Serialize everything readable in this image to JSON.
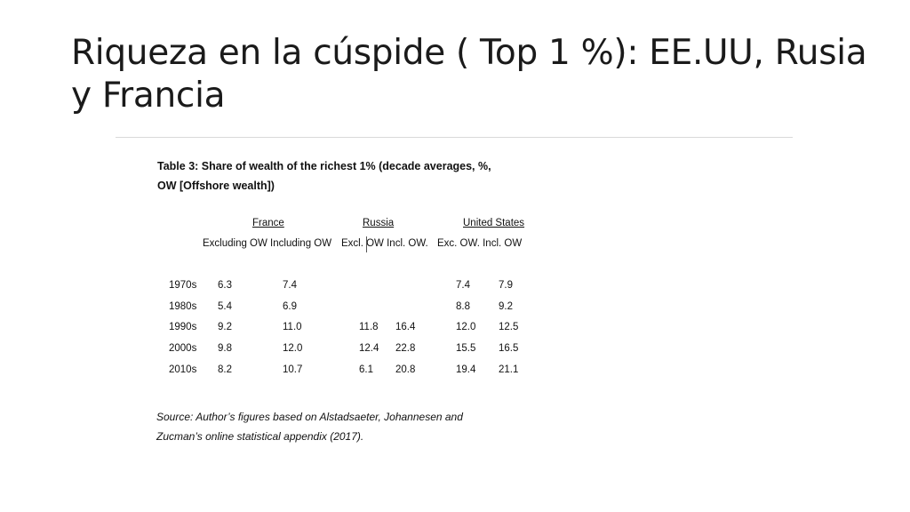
{
  "slide": {
    "title_line1": "Riqueza en la cúspide ( Top 1 %): EE.UU, Rusia",
    "title_line2": "y Francia"
  },
  "table": {
    "title_line1": "Table 3: Share of wealth of the richest 1% (decade averages, %,",
    "title_line2": "OW [Offshore wealth])",
    "groups": {
      "france": "France",
      "russia": "Russia",
      "us": "United States"
    },
    "subheaders": {
      "france": "Excluding OW Including OW",
      "russia": "Excl. OW Incl. OW.",
      "us": "Exc. OW.   Incl. OW"
    },
    "rows": [
      {
        "decade": "1970s",
        "fr_ex": "6.3",
        "fr_in": "7.4",
        "ru_ex": "",
        "ru_in": "",
        "us_ex": "7.4",
        "us_in": "7.9"
      },
      {
        "decade": "1980s",
        "fr_ex": "5.4",
        "fr_in": "6.9",
        "ru_ex": "",
        "ru_in": "",
        "us_ex": "8.8",
        "us_in": "9.2"
      },
      {
        "decade": "1990s",
        "fr_ex": "9.2",
        "fr_in": "11.0",
        "ru_ex": "11.8",
        "ru_in": "16.4",
        "us_ex": "12.0",
        "us_in": "12.5"
      },
      {
        "decade": "2000s",
        "fr_ex": "9.8",
        "fr_in": "12.0",
        "ru_ex": "12.4",
        "ru_in": "22.8",
        "us_ex": "15.5",
        "us_in": "16.5"
      },
      {
        "decade": "2010s",
        "fr_ex": "8.2",
        "fr_in": "10.7",
        "ru_ex": "6.1",
        "ru_in": "20.8",
        "us_ex": "19.4",
        "us_in": "21.1"
      }
    ],
    "source_line1": "Source: Author’s figures based on Alstadsaeter, Johannesen and",
    "source_line2": "Zucman’s online statistical appendix (2017)."
  }
}
